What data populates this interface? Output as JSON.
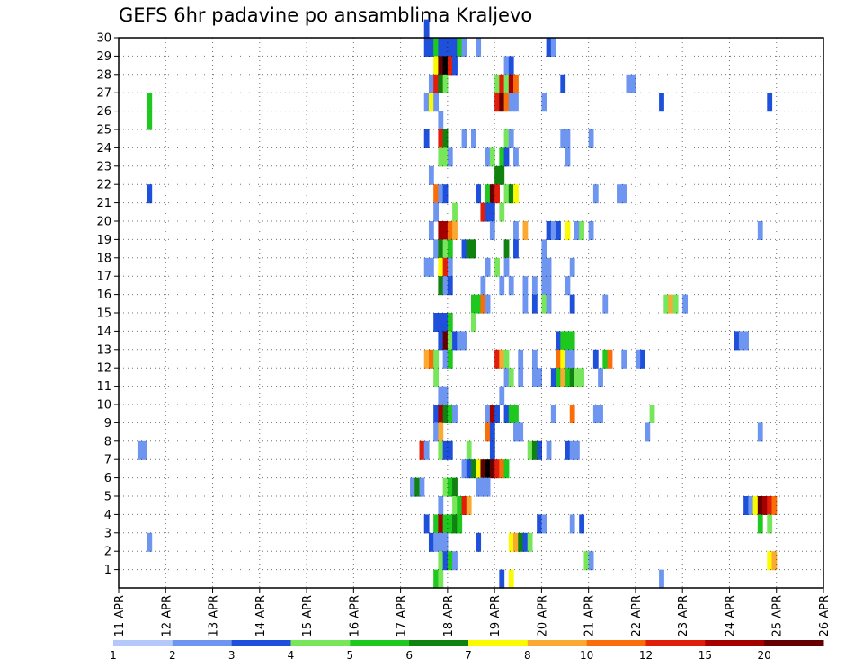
{
  "chart_data": {
    "type": "heatmap",
    "title": "GEFS 6hr padavine po ansamblima Kraljevo",
    "xlabel": "",
    "ylabel": "",
    "y_tick_labels": [
      "1",
      "2",
      "3",
      "4",
      "5",
      "6",
      "7",
      "8",
      "9",
      "10",
      "11",
      "12",
      "13",
      "14",
      "15",
      "16",
      "17",
      "18",
      "19",
      "20",
      "21",
      "22",
      "23",
      "24",
      "25",
      "26",
      "27",
      "28",
      "29",
      "30"
    ],
    "x_tick_labels": [
      "11 APR",
      "12 APR",
      "13 APR",
      "14 APR",
      "15 APR",
      "16 APR",
      "17 APR",
      "18 APR",
      "19 APR",
      "20 APR",
      "21 APR",
      "22 APR",
      "23 APR",
      "24 APR",
      "25 APR",
      "26 APR"
    ],
    "ylim": [
      0,
      30
    ],
    "grid": true,
    "legend": {
      "position": "bottom",
      "labels": [
        "1",
        "2",
        "3",
        "4",
        "5",
        "6",
        "7",
        "8",
        "10",
        "12",
        "15",
        "20"
      ],
      "colors": [
        "#b4c8fa",
        "#6e96f0",
        "#1e50dc",
        "#78e65a",
        "#1ec81e",
        "#0f820f",
        "#fafa00",
        "#faaa32",
        "#fa6e0a",
        "#e11e0a",
        "#a50000",
        "#640000"
      ]
    },
    "cells": [
      [
        7.5,
        30,
        2
      ],
      [
        7.5,
        29,
        2
      ],
      [
        7.6,
        29,
        2
      ],
      [
        7.7,
        29,
        4
      ],
      [
        7.8,
        29,
        2
      ],
      [
        7.9,
        29,
        2
      ],
      [
        8.0,
        29,
        2
      ],
      [
        8.1,
        29,
        2
      ],
      [
        8.2,
        29,
        4
      ],
      [
        8.3,
        29,
        1
      ],
      [
        8.6,
        29,
        1
      ],
      [
        10.1,
        29,
        2
      ],
      [
        10.2,
        29,
        1
      ],
      [
        7.7,
        28,
        6
      ],
      [
        7.8,
        28,
        11
      ],
      [
        7.9,
        28,
        12
      ],
      [
        8.0,
        28,
        9
      ],
      [
        8.1,
        28,
        2
      ],
      [
        9.2,
        28,
        1
      ],
      [
        9.3,
        28,
        2
      ],
      [
        7.6,
        27,
        1
      ],
      [
        7.7,
        27,
        9
      ],
      [
        7.8,
        27,
        5
      ],
      [
        7.9,
        27,
        3
      ],
      [
        9.0,
        27,
        3
      ],
      [
        9.1,
        27,
        9
      ],
      [
        9.2,
        27,
        3
      ],
      [
        9.3,
        27,
        10
      ],
      [
        9.4,
        27,
        8
      ],
      [
        10.4,
        27,
        2
      ],
      [
        11.8,
        27,
        1
      ],
      [
        11.9,
        27,
        1
      ],
      [
        7.5,
        26,
        1
      ],
      [
        7.6,
        26,
        6
      ],
      [
        7.7,
        26,
        1
      ],
      [
        9.0,
        26,
        9
      ],
      [
        9.1,
        26,
        11
      ],
      [
        9.2,
        26,
        8
      ],
      [
        9.3,
        26,
        1
      ],
      [
        9.4,
        26,
        1
      ],
      [
        10.0,
        26,
        1
      ],
      [
        12.5,
        26,
        2
      ],
      [
        14.8,
        26,
        2
      ],
      [
        1.6,
        26,
        4
      ],
      [
        1.6,
        25,
        4
      ],
      [
        7.8,
        25,
        1
      ],
      [
        7.5,
        24,
        2
      ],
      [
        7.8,
        24,
        9
      ],
      [
        7.9,
        24,
        5
      ],
      [
        8.3,
        24,
        1
      ],
      [
        8.5,
        24,
        1
      ],
      [
        9.2,
        24,
        3
      ],
      [
        9.3,
        24,
        1
      ],
      [
        10.4,
        24,
        1
      ],
      [
        10.5,
        24,
        1
      ],
      [
        11.0,
        24,
        1
      ],
      [
        7.8,
        23,
        3
      ],
      [
        7.9,
        23,
        3
      ],
      [
        8.0,
        23,
        1
      ],
      [
        8.8,
        23,
        1
      ],
      [
        8.9,
        23,
        3
      ],
      [
        9.1,
        23,
        4
      ],
      [
        9.2,
        23,
        2
      ],
      [
        9.4,
        23,
        1
      ],
      [
        10.5,
        23,
        1
      ],
      [
        9.0,
        22,
        5
      ],
      [
        9.1,
        22,
        5
      ],
      [
        7.6,
        22,
        1
      ],
      [
        1.6,
        21,
        2
      ],
      [
        7.7,
        21,
        8
      ],
      [
        7.8,
        21,
        1
      ],
      [
        7.9,
        21,
        2
      ],
      [
        8.6,
        21,
        2
      ],
      [
        8.8,
        21,
        4
      ],
      [
        8.9,
        21,
        11
      ],
      [
        9.0,
        21,
        9
      ],
      [
        9.2,
        21,
        3
      ],
      [
        9.3,
        21,
        5
      ],
      [
        9.4,
        21,
        6
      ],
      [
        11.1,
        21,
        1
      ],
      [
        11.6,
        21,
        1
      ],
      [
        11.7,
        21,
        1
      ],
      [
        7.7,
        20,
        1
      ],
      [
        8.1,
        20,
        3
      ],
      [
        8.7,
        20,
        9
      ],
      [
        8.8,
        20,
        2
      ],
      [
        8.9,
        20,
        2
      ],
      [
        9.1,
        20,
        3
      ],
      [
        7.6,
        19,
        1
      ],
      [
        7.8,
        19,
        10
      ],
      [
        7.9,
        19,
        10
      ],
      [
        8.0,
        19,
        8
      ],
      [
        8.1,
        19,
        7
      ],
      [
        8.9,
        19,
        1
      ],
      [
        9.4,
        19,
        1
      ],
      [
        9.6,
        19,
        7
      ],
      [
        10.1,
        19,
        2
      ],
      [
        10.2,
        19,
        1
      ],
      [
        10.3,
        19,
        2
      ],
      [
        10.5,
        19,
        6
      ],
      [
        10.7,
        19,
        1
      ],
      [
        10.8,
        19,
        3
      ],
      [
        11.0,
        19,
        1
      ],
      [
        14.6,
        19,
        1
      ],
      [
        7.7,
        18,
        1
      ],
      [
        7.8,
        18,
        5
      ],
      [
        7.9,
        18,
        3
      ],
      [
        8.0,
        18,
        4
      ],
      [
        8.3,
        18,
        2
      ],
      [
        8.4,
        18,
        5
      ],
      [
        8.5,
        18,
        5
      ],
      [
        9.2,
        18,
        5
      ],
      [
        9.4,
        18,
        2
      ],
      [
        10.0,
        18,
        1
      ],
      [
        7.5,
        17,
        1
      ],
      [
        7.6,
        17,
        1
      ],
      [
        7.8,
        17,
        6
      ],
      [
        7.9,
        17,
        9
      ],
      [
        8.0,
        17,
        1
      ],
      [
        8.8,
        17,
        1
      ],
      [
        9.0,
        17,
        3
      ],
      [
        9.2,
        17,
        1
      ],
      [
        10.0,
        17,
        1
      ],
      [
        10.1,
        17,
        1
      ],
      [
        10.6,
        17,
        1
      ],
      [
        7.8,
        16,
        5
      ],
      [
        7.9,
        16,
        1
      ],
      [
        8.0,
        16,
        2
      ],
      [
        8.7,
        16,
        1
      ],
      [
        9.1,
        16,
        1
      ],
      [
        9.3,
        16,
        1
      ],
      [
        9.6,
        16,
        1
      ],
      [
        9.8,
        16,
        1
      ],
      [
        10.0,
        16,
        1
      ],
      [
        10.1,
        16,
        1
      ],
      [
        10.5,
        16,
        1
      ],
      [
        8.5,
        15,
        4
      ],
      [
        8.6,
        15,
        4
      ],
      [
        8.7,
        15,
        8
      ],
      [
        8.8,
        15,
        1
      ],
      [
        9.6,
        15,
        1
      ],
      [
        9.8,
        15,
        2
      ],
      [
        10.0,
        15,
        3
      ],
      [
        10.1,
        15,
        1
      ],
      [
        10.6,
        15,
        2
      ],
      [
        11.3,
        15,
        1
      ],
      [
        12.6,
        15,
        3
      ],
      [
        12.7,
        15,
        7
      ],
      [
        12.8,
        15,
        3
      ],
      [
        13.0,
        15,
        1
      ],
      [
        7.7,
        14,
        2
      ],
      [
        7.8,
        14,
        2
      ],
      [
        7.9,
        14,
        2
      ],
      [
        8.0,
        14,
        4
      ],
      [
        8.5,
        14,
        3
      ],
      [
        7.8,
        13,
        2
      ],
      [
        7.9,
        13,
        11
      ],
      [
        8.0,
        13,
        3
      ],
      [
        8.1,
        13,
        2
      ],
      [
        8.2,
        13,
        1
      ],
      [
        8.3,
        13,
        1
      ],
      [
        10.3,
        13,
        2
      ],
      [
        10.4,
        13,
        4
      ],
      [
        10.5,
        13,
        4
      ],
      [
        10.6,
        13,
        4
      ],
      [
        14.1,
        13,
        2
      ],
      [
        14.2,
        13,
        1
      ],
      [
        14.3,
        13,
        1
      ],
      [
        7.5,
        12,
        7
      ],
      [
        7.6,
        12,
        8
      ],
      [
        7.7,
        12,
        3
      ],
      [
        7.9,
        12,
        1
      ],
      [
        8.0,
        12,
        4
      ],
      [
        9.0,
        12,
        9
      ],
      [
        9.1,
        12,
        7
      ],
      [
        9.2,
        12,
        3
      ],
      [
        9.5,
        12,
        1
      ],
      [
        9.8,
        12,
        1
      ],
      [
        10.3,
        12,
        8
      ],
      [
        10.4,
        12,
        6
      ],
      [
        10.5,
        12,
        1
      ],
      [
        10.6,
        12,
        1
      ],
      [
        11.1,
        12,
        2
      ],
      [
        11.3,
        12,
        4
      ],
      [
        11.4,
        12,
        8
      ],
      [
        11.7,
        12,
        1
      ],
      [
        12.0,
        12,
        1
      ],
      [
        12.1,
        12,
        2
      ],
      [
        7.7,
        11,
        3
      ],
      [
        9.2,
        11,
        1
      ],
      [
        9.3,
        11,
        3
      ],
      [
        9.5,
        11,
        1
      ],
      [
        9.8,
        11,
        1
      ],
      [
        9.9,
        11,
        1
      ],
      [
        10.2,
        11,
        2
      ],
      [
        10.3,
        11,
        4
      ],
      [
        10.4,
        11,
        7
      ],
      [
        10.5,
        11,
        4
      ],
      [
        10.6,
        11,
        5
      ],
      [
        10.7,
        11,
        3
      ],
      [
        10.8,
        11,
        3
      ],
      [
        11.2,
        11,
        1
      ],
      [
        7.8,
        10,
        1
      ],
      [
        7.9,
        10,
        1
      ],
      [
        9.1,
        10,
        1
      ],
      [
        7.7,
        9,
        2
      ],
      [
        7.8,
        9,
        10
      ],
      [
        7.9,
        9,
        5
      ],
      [
        8.0,
        9,
        4
      ],
      [
        8.1,
        9,
        1
      ],
      [
        8.8,
        9,
        1
      ],
      [
        8.9,
        9,
        10
      ],
      [
        9.0,
        9,
        2
      ],
      [
        9.2,
        9,
        2
      ],
      [
        9.3,
        9,
        4
      ],
      [
        9.4,
        9,
        4
      ],
      [
        10.2,
        9,
        1
      ],
      [
        10.6,
        9,
        8
      ],
      [
        11.1,
        9,
        1
      ],
      [
        11.2,
        9,
        1
      ],
      [
        12.3,
        9,
        3
      ],
      [
        7.7,
        8,
        1
      ],
      [
        7.8,
        8,
        7
      ],
      [
        8.8,
        8,
        8
      ],
      [
        8.9,
        8,
        2
      ],
      [
        9.4,
        8,
        1
      ],
      [
        9.5,
        8,
        1
      ],
      [
        12.2,
        8,
        1
      ],
      [
        14.6,
        8,
        1
      ],
      [
        1.4,
        7,
        1
      ],
      [
        1.5,
        7,
        1
      ],
      [
        7.4,
        7,
        9
      ],
      [
        7.5,
        7,
        1
      ],
      [
        7.8,
        7,
        3
      ],
      [
        7.9,
        7,
        2
      ],
      [
        8.0,
        7,
        2
      ],
      [
        8.4,
        7,
        3
      ],
      [
        8.9,
        7,
        2
      ],
      [
        9.7,
        7,
        3
      ],
      [
        9.8,
        7,
        5
      ],
      [
        9.9,
        7,
        2
      ],
      [
        10.1,
        7,
        1
      ],
      [
        10.5,
        7,
        2
      ],
      [
        10.6,
        7,
        1
      ],
      [
        10.7,
        7,
        1
      ],
      [
        8.3,
        6,
        1
      ],
      [
        8.4,
        6,
        2
      ],
      [
        8.5,
        6,
        5
      ],
      [
        8.6,
        6,
        6
      ],
      [
        8.7,
        6,
        11
      ],
      [
        8.8,
        6,
        12
      ],
      [
        8.9,
        6,
        11
      ],
      [
        9.0,
        6,
        9
      ],
      [
        9.1,
        6,
        8
      ],
      [
        9.2,
        6,
        4
      ],
      [
        7.2,
        5,
        1
      ],
      [
        7.3,
        5,
        5
      ],
      [
        7.4,
        5,
        1
      ],
      [
        7.9,
        5,
        3
      ],
      [
        8.0,
        5,
        4
      ],
      [
        8.1,
        5,
        5
      ],
      [
        8.6,
        5,
        1
      ],
      [
        8.7,
        5,
        1
      ],
      [
        8.8,
        5,
        1
      ],
      [
        7.8,
        4,
        1
      ],
      [
        8.1,
        4,
        3
      ],
      [
        8.2,
        4,
        4
      ],
      [
        8.3,
        4,
        9
      ],
      [
        8.4,
        4,
        7
      ],
      [
        14.3,
        4,
        2
      ],
      [
        14.4,
        4,
        1
      ],
      [
        14.5,
        4,
        6
      ],
      [
        14.6,
        4,
        11
      ],
      [
        14.7,
        4,
        10
      ],
      [
        14.8,
        4,
        9
      ],
      [
        14.9,
        4,
        8
      ],
      [
        7.5,
        3,
        2
      ],
      [
        7.7,
        3,
        4
      ],
      [
        7.8,
        3,
        10
      ],
      [
        7.9,
        3,
        4
      ],
      [
        8.0,
        3,
        4
      ],
      [
        8.1,
        3,
        5
      ],
      [
        8.2,
        3,
        4
      ],
      [
        9.9,
        3,
        2
      ],
      [
        10.0,
        3,
        1
      ],
      [
        10.6,
        3,
        1
      ],
      [
        10.8,
        3,
        2
      ],
      [
        14.6,
        3,
        4
      ],
      [
        14.8,
        3,
        3
      ],
      [
        1.6,
        2,
        1
      ],
      [
        7.6,
        2,
        2
      ],
      [
        7.7,
        2,
        1
      ],
      [
        7.8,
        2,
        1
      ],
      [
        7.9,
        2,
        1
      ],
      [
        8.6,
        2,
        2
      ],
      [
        9.3,
        2,
        6
      ],
      [
        9.4,
        2,
        7
      ],
      [
        9.5,
        2,
        5
      ],
      [
        9.6,
        2,
        2
      ],
      [
        9.7,
        2,
        3
      ],
      [
        7.8,
        1,
        3
      ],
      [
        7.9,
        1,
        2
      ],
      [
        8.0,
        1,
        4
      ],
      [
        8.1,
        1,
        1
      ],
      [
        10.9,
        1,
        3
      ],
      [
        11.0,
        1,
        1
      ],
      [
        14.8,
        1,
        6
      ],
      [
        14.9,
        1,
        7
      ],
      [
        7.7,
        0,
        4
      ],
      [
        7.8,
        0,
        3
      ],
      [
        9.1,
        0,
        2
      ],
      [
        9.3,
        0,
        6
      ],
      [
        12.5,
        0,
        1
      ]
    ]
  }
}
